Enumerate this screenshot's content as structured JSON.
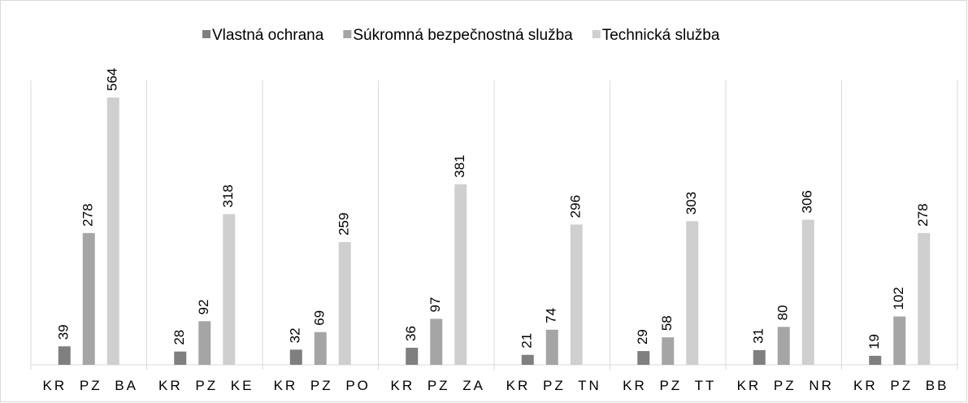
{
  "chart_data": {
    "type": "bar",
    "categories": [
      "KR PZ BA",
      "KR PZ KE",
      "KR PZ PO",
      "KR PZ ZA",
      "KR PZ TN",
      "KR PZ TT",
      "KR PZ NR",
      "KR PZ BB"
    ],
    "series": [
      {
        "name": "Vlastná ochrana",
        "color": "#7f7f7f",
        "values": [
          39,
          28,
          32,
          36,
          21,
          29,
          31,
          19
        ]
      },
      {
        "name": "Súkromná bezpečnostná služba",
        "color": "#a5a5a5",
        "values": [
          278,
          92,
          69,
          97,
          74,
          58,
          80,
          102
        ]
      },
      {
        "name": "Technická služba",
        "color": "#cfcfcf",
        "values": [
          564,
          318,
          259,
          381,
          296,
          303,
          306,
          278
        ]
      }
    ],
    "ylim": [
      0,
      600
    ],
    "legend": "top"
  }
}
